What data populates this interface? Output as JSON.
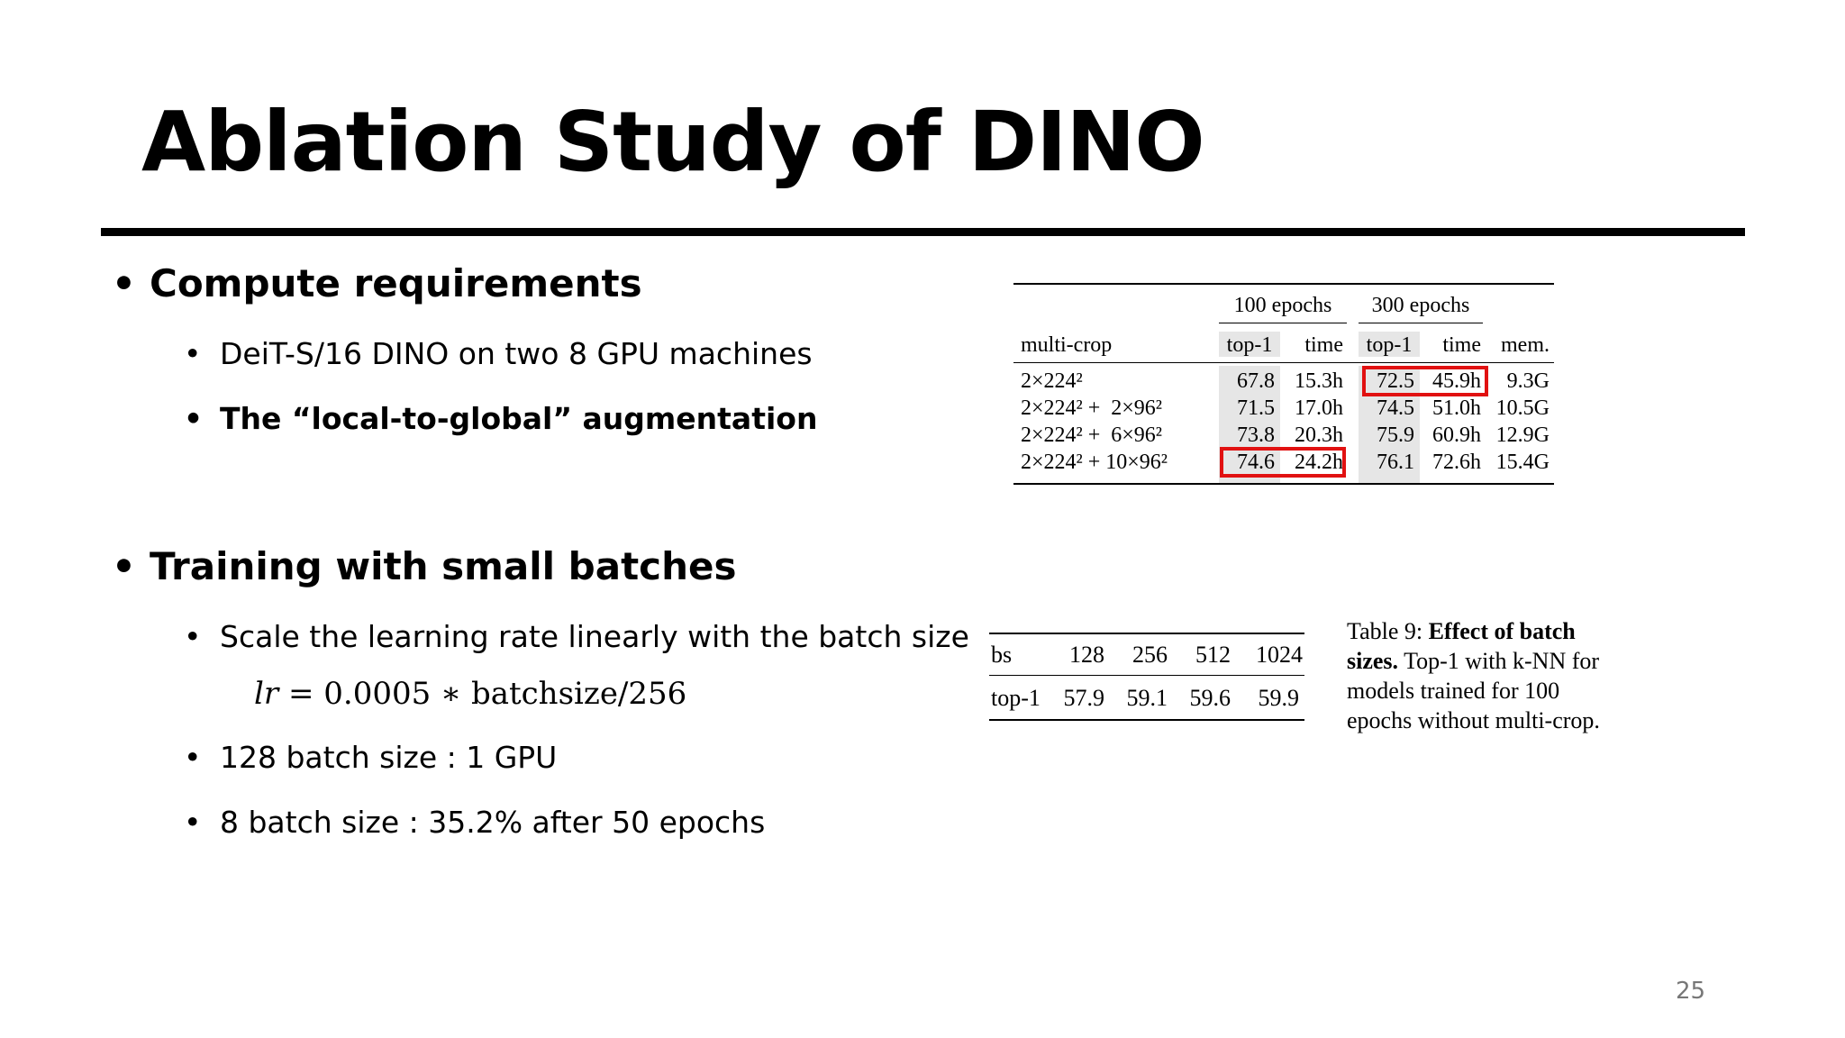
{
  "slide": {
    "title": "Ablation Study of DINO",
    "page_number": "25"
  },
  "bullets": {
    "compute": "Compute requirements",
    "compute_sub1": "DeiT-S/16 DINO on two 8 GPU machines",
    "compute_sub2": "The “local-to-global” augmentation",
    "training": "Training with small batches",
    "training_sub1": "Scale the learning rate linearly with the batch size",
    "formula_lhs": "lr",
    "formula_rhs": "= 0.0005 ∗ batchsize/256",
    "training_sub2": "128 batch size : 1 GPU",
    "training_sub3": "8 batch size : 35.2% after 50 epochs",
    "bullet_char": "•"
  },
  "table1": {
    "group_100": "100 epochs",
    "group_300": "300 epochs",
    "col_multicrop": "multi-crop",
    "col_top1_a": "top-1",
    "col_time_a": "time",
    "col_top1_b": "top-1",
    "col_time_b": "time",
    "col_mem": "mem.",
    "rows": [
      {
        "crop": "2×224²",
        "top1_100": "67.8",
        "time_100": "15.3h",
        "top1_300": "72.5",
        "time_300": "45.9h",
        "mem": "9.3G"
      },
      {
        "crop": "2×224² +  2×96²",
        "top1_100": "71.5",
        "time_100": "17.0h",
        "top1_300": "74.5",
        "time_300": "51.0h",
        "mem": "10.5G"
      },
      {
        "crop": "2×224² +  6×96²",
        "top1_100": "73.8",
        "time_100": "20.3h",
        "top1_300": "75.9",
        "time_300": "60.9h",
        "mem": "12.9G"
      },
      {
        "crop": "2×224² + 10×96²",
        "top1_100": "74.6",
        "time_100": "24.2h",
        "top1_300": "76.1",
        "time_300": "72.6h",
        "mem": "15.4G"
      }
    ],
    "highlight_color": "#e11111"
  },
  "table2": {
    "row_header_bs": "bs",
    "row_header_top1": "top-1",
    "bs": [
      "128",
      "256",
      "512",
      "1024"
    ],
    "top1": [
      "57.9",
      "59.1",
      "59.6",
      "59.9"
    ],
    "caption_label": "Table 9:",
    "caption_bold": "Effect of batch sizes.",
    "caption_rest": "Top-1 with k-NN for models trained for 100 epochs without multi-crop."
  }
}
